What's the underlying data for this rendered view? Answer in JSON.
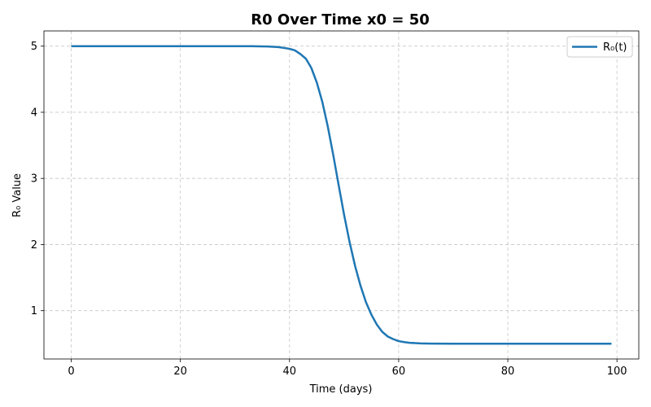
{
  "chart_data": {
    "type": "line",
    "title": "R0 Over Time x0 = 50",
    "xlabel": "Time (days)",
    "ylabel": "R₀ Value",
    "xlim": [
      -5,
      104
    ],
    "ylim": [
      0.27,
      5.23
    ],
    "xticks": [
      0,
      20,
      40,
      60,
      80,
      100
    ],
    "yticks": [
      1,
      2,
      3,
      4,
      5
    ],
    "grid": true,
    "legend_position": "top-right",
    "series": [
      {
        "name": "R₀(t)",
        "color": "#1f77b4",
        "x": [
          0,
          5,
          10,
          15,
          20,
          25,
          30,
          33,
          36,
          38,
          40,
          41,
          42,
          43,
          44,
          45,
          46,
          47,
          48,
          49,
          50,
          51,
          52,
          53,
          54,
          55,
          56,
          57,
          58,
          59,
          60,
          61,
          62,
          64,
          66,
          70,
          75,
          80,
          85,
          90,
          95,
          99
        ],
        "y": [
          5.0,
          5.0,
          5.0,
          5.0,
          5.0,
          5.0,
          5.0,
          4.999,
          4.995,
          4.985,
          4.96,
          4.935,
          4.88,
          4.81,
          4.67,
          4.45,
          4.16,
          3.79,
          3.36,
          2.9,
          2.45,
          2.04,
          1.68,
          1.38,
          1.13,
          0.94,
          0.79,
          0.68,
          0.61,
          0.57,
          0.54,
          0.525,
          0.515,
          0.505,
          0.502,
          0.5,
          0.5,
          0.5,
          0.5,
          0.5,
          0.5,
          0.5
        ]
      }
    ]
  }
}
